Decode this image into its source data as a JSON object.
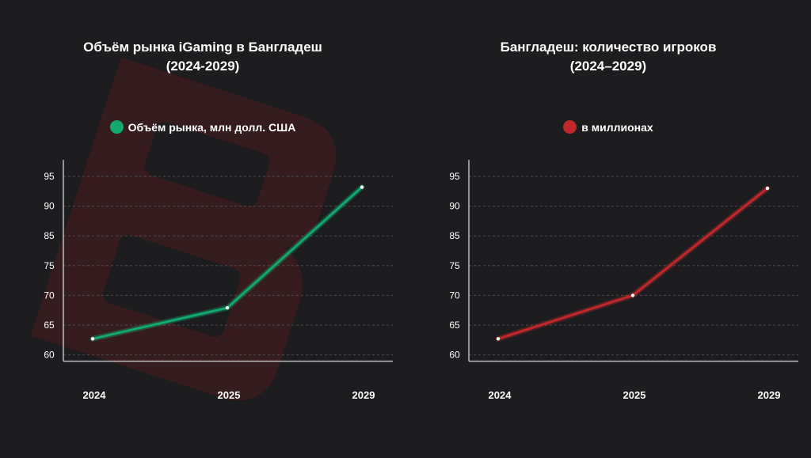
{
  "watermark": {
    "icon": "brand-logo-icon",
    "color": "#5a1418"
  },
  "chart_data": [
    {
      "type": "line",
      "title_lines": [
        "Объём рынка iGaming в Бангладеш",
        "(2024-2029)"
      ],
      "legend": "Объём рынка, млн долл. США",
      "color": "#13a86f",
      "x": [
        "2024",
        "2025",
        "2029"
      ],
      "series": [
        {
          "name": "Объём рынка, млн долл. США",
          "values": [
            62.7,
            67.9,
            93.2
          ]
        }
      ],
      "yticks": [
        60,
        65,
        70,
        75,
        85,
        90,
        95
      ],
      "grid": true
    },
    {
      "type": "line",
      "title_lines": [
        "Бангладеш: количество игроков",
        "(2024–2029)"
      ],
      "legend": "в миллионах",
      "color": "#c0282a",
      "x": [
        "2024",
        "2025",
        "2029"
      ],
      "series": [
        {
          "name": "в миллионах",
          "values": [
            62.7,
            70.0,
            93.0
          ]
        }
      ],
      "yticks": [
        60,
        65,
        70,
        75,
        85,
        90,
        95
      ],
      "grid": true
    }
  ]
}
